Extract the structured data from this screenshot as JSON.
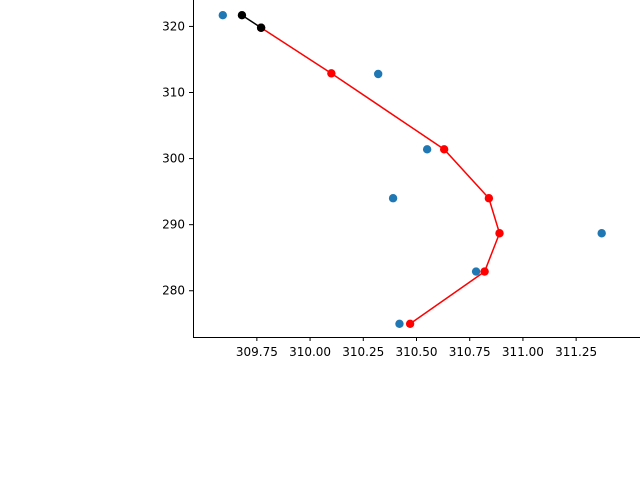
{
  "chart_data": {
    "type": "scatter",
    "title": "",
    "xlabel": "",
    "ylabel": "",
    "xlim": [
      309.45,
      311.55
    ],
    "ylim": [
      273.0,
      324.0
    ],
    "x_ticks": [
      309.75,
      310.0,
      310.25,
      310.5,
      310.75,
      311.0,
      311.25
    ],
    "x_tick_labels": [
      "309.75",
      "310.00",
      "310.25",
      "310.50",
      "310.75",
      "311.00",
      "311.25"
    ],
    "y_ticks": [
      280,
      290,
      300,
      310,
      320
    ],
    "y_tick_labels": [
      "280",
      "290",
      "300",
      "310",
      "320"
    ],
    "grid": false,
    "series": [
      {
        "kind": "scatter",
        "color": "#1f77b4",
        "points": [
          {
            "x": 309.59,
            "y": 321.7
          },
          {
            "x": 310.32,
            "y": 312.8
          },
          {
            "x": 310.55,
            "y": 301.4
          },
          {
            "x": 310.39,
            "y": 294.0
          },
          {
            "x": 311.37,
            "y": 288.7
          },
          {
            "x": 310.78,
            "y": 282.9
          },
          {
            "x": 310.42,
            "y": 275.0
          }
        ]
      },
      {
        "kind": "line-markers",
        "color": "#ff0000",
        "points": [
          {
            "x": 309.77,
            "y": 319.8
          },
          {
            "x": 310.1,
            "y": 312.9
          },
          {
            "x": 310.63,
            "y": 301.4
          },
          {
            "x": 310.84,
            "y": 294.0
          },
          {
            "x": 310.89,
            "y": 288.7
          },
          {
            "x": 310.82,
            "y": 282.9
          },
          {
            "x": 310.47,
            "y": 275.0
          }
        ]
      },
      {
        "kind": "line-markers",
        "color": "#000000",
        "points": [
          {
            "x": 309.68,
            "y": 321.7
          },
          {
            "x": 309.77,
            "y": 319.8
          }
        ]
      }
    ]
  }
}
